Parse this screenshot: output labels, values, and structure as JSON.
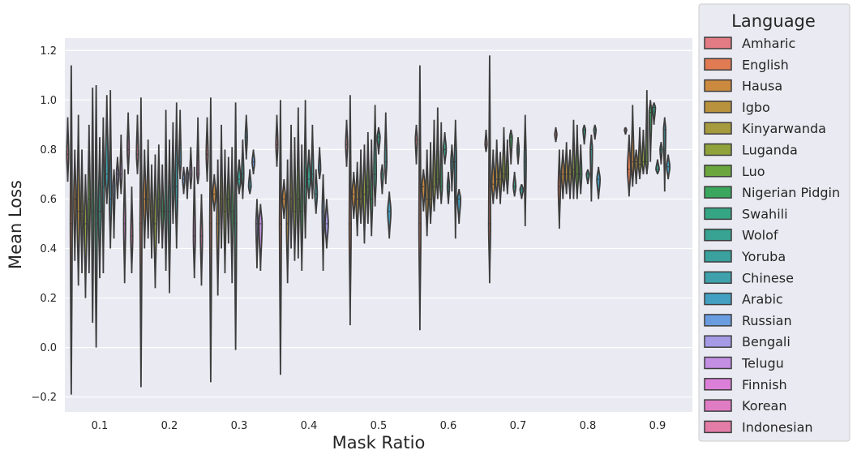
{
  "chart_data": {
    "type": "violin",
    "xlabel": "Mask Ratio",
    "ylabel": "Mean Loss",
    "categories": [
      "0.1",
      "0.2",
      "0.3",
      "0.4",
      "0.5",
      "0.6",
      "0.7",
      "0.8",
      "0.9"
    ],
    "ylim": [
      -0.26,
      1.25
    ],
    "yticks": [
      -0.2,
      0.0,
      0.2,
      0.4,
      0.6,
      0.8,
      1.0,
      1.2
    ],
    "ytick_labels": [
      "−0.2",
      "0.0",
      "0.2",
      "0.4",
      "0.6",
      "0.8",
      "1.0",
      "1.2"
    ],
    "grid": true,
    "legend": {
      "title": "Language",
      "placement": "outside-right",
      "entries": [
        {
          "name": "Amharic",
          "color": "#e37b84"
        },
        {
          "name": "English",
          "color": "#e07b54"
        },
        {
          "name": "Hausa",
          "color": "#cc8a3f"
        },
        {
          "name": "Igbo",
          "color": "#b9923e"
        },
        {
          "name": "Kinyarwanda",
          "color": "#a69a3e"
        },
        {
          "name": "Luganda",
          "color": "#8fa23c"
        },
        {
          "name": "Luo",
          "color": "#6ba63e"
        },
        {
          "name": "Nigerian Pidgin",
          "color": "#3ba75e"
        },
        {
          "name": "Swahili",
          "color": "#36a583"
        },
        {
          "name": "Wolof",
          "color": "#38a393"
        },
        {
          "name": "Yoruba",
          "color": "#3aa19e"
        },
        {
          "name": "Chinese",
          "color": "#3ea1ab"
        },
        {
          "name": "Arabic",
          "color": "#43a0c2"
        },
        {
          "name": "Russian",
          "color": "#6a9de0"
        },
        {
          "name": "Bengali",
          "color": "#a59ae6"
        },
        {
          "name": "Telugu",
          "color": "#c38fe3"
        },
        {
          "name": "Finnish",
          "color": "#db7fd8"
        },
        {
          "name": "Korean",
          "color": "#e07cc4"
        },
        {
          "name": "Indonesian",
          "color": "#e37ca6"
        }
      ]
    },
    "violins": [
      {
        "x": "0.1",
        "series": [
          {
            "median": 0.78,
            "min": 0.67,
            "max": 0.93,
            "width": 0.3
          },
          {
            "median": 0.5,
            "min": -0.19,
            "max": 1.14,
            "width": 0.5
          },
          {
            "median": 0.6,
            "min": 0.35,
            "max": 0.8,
            "width": 0.6
          },
          {
            "median": 0.55,
            "min": 0.25,
            "max": 0.94,
            "width": 0.7
          },
          {
            "median": 0.55,
            "min": 0.3,
            "max": 0.8,
            "width": 0.5
          },
          {
            "median": 0.5,
            "min": 0.2,
            "max": 0.7,
            "width": 0.7
          },
          {
            "median": 0.6,
            "min": 0.3,
            "max": 0.9,
            "width": 0.6
          },
          {
            "median": 0.55,
            "min": 0.1,
            "max": 1.05,
            "width": 0.5
          },
          {
            "median": 0.5,
            "min": -0.0,
            "max": 1.06,
            "width": 0.6
          },
          {
            "median": 0.55,
            "min": 0.28,
            "max": 0.85,
            "width": 0.7
          },
          {
            "median": 0.65,
            "min": 0.3,
            "max": 0.93,
            "width": 0.5
          },
          {
            "median": 0.7,
            "min": 0.58,
            "max": 1.02,
            "width": 0.8
          },
          {
            "median": 0.6,
            "min": 0.4,
            "max": 1.04,
            "width": 0.6
          },
          {
            "median": 0.65,
            "min": 0.44,
            "max": 0.72,
            "width": 0.5
          },
          {
            "median": 0.7,
            "min": 0.6,
            "max": 0.77,
            "width": 0.6
          },
          {
            "median": 0.7,
            "min": 0.62,
            "max": 0.86,
            "width": 0.5
          },
          {
            "median": 0.5,
            "min": 0.26,
            "max": 0.72,
            "width": 0.4
          },
          {
            "median": 0.8,
            "min": 0.7,
            "max": 0.95,
            "width": 0.5
          },
          {
            "median": 0.45,
            "min": 0.3,
            "max": 0.65,
            "width": 0.5
          }
        ]
      },
      {
        "x": "0.2",
        "series": [
          {
            "median": 0.78,
            "min": 0.7,
            "max": 0.94,
            "width": 0.3
          },
          {
            "median": 0.5,
            "min": -0.16,
            "max": 1.01,
            "width": 0.5
          },
          {
            "median": 0.6,
            "min": 0.4,
            "max": 0.8,
            "width": 0.7
          },
          {
            "median": 0.6,
            "min": 0.44,
            "max": 0.84,
            "width": 0.6
          },
          {
            "median": 0.55,
            "min": 0.36,
            "max": 0.74,
            "width": 0.5
          },
          {
            "median": 0.5,
            "min": 0.24,
            "max": 0.78,
            "width": 0.7
          },
          {
            "median": 0.6,
            "min": 0.42,
            "max": 0.82,
            "width": 0.5
          },
          {
            "median": 0.55,
            "min": 0.4,
            "max": 0.74,
            "width": 0.6
          },
          {
            "median": 0.55,
            "min": 0.31,
            "max": 0.96,
            "width": 0.5
          },
          {
            "median": 0.55,
            "min": 0.22,
            "max": 0.84,
            "width": 0.6
          },
          {
            "median": 0.65,
            "min": 0.5,
            "max": 0.91,
            "width": 0.5
          },
          {
            "median": 0.65,
            "min": 0.4,
            "max": 0.99,
            "width": 0.7
          },
          {
            "median": 0.75,
            "min": 0.68,
            "max": 0.96,
            "width": 0.5
          },
          {
            "median": 0.68,
            "min": 0.62,
            "max": 0.73,
            "width": 0.6
          },
          {
            "median": 0.7,
            "min": 0.6,
            "max": 0.73,
            "width": 0.5
          },
          {
            "median": 0.7,
            "min": 0.64,
            "max": 0.81,
            "width": 0.5
          },
          {
            "median": 0.45,
            "min": 0.28,
            "max": 0.73,
            "width": 0.5
          },
          {
            "median": 0.7,
            "min": 0.66,
            "max": 0.93,
            "width": 0.5
          },
          {
            "median": 0.45,
            "min": 0.25,
            "max": 0.62,
            "width": 0.5
          }
        ]
      },
      {
        "x": "0.3",
        "series": [
          {
            "median": 0.78,
            "min": 0.67,
            "max": 0.93,
            "width": 0.3
          },
          {
            "median": 0.5,
            "min": -0.14,
            "max": 1.01,
            "width": 0.5
          },
          {
            "median": 0.62,
            "min": 0.55,
            "max": 0.7,
            "width": 0.9
          },
          {
            "median": 0.5,
            "min": 0.21,
            "max": 0.76,
            "width": 0.6
          },
          {
            "median": 0.6,
            "min": 0.4,
            "max": 0.9,
            "width": 0.5
          },
          {
            "median": 0.55,
            "min": 0.3,
            "max": 0.8,
            "width": 0.6
          },
          {
            "median": 0.6,
            "min": 0.42,
            "max": 0.77,
            "width": 0.6
          },
          {
            "median": 0.55,
            "min": 0.26,
            "max": 0.81,
            "width": 0.6
          },
          {
            "median": 0.5,
            "min": -0.01,
            "max": 0.99,
            "width": 0.5
          },
          {
            "median": 0.68,
            "min": 0.62,
            "max": 0.76,
            "width": 0.9
          },
          {
            "median": 0.7,
            "min": 0.6,
            "max": 0.84,
            "width": 0.6
          },
          {
            "median": 0.85,
            "min": 0.76,
            "max": 0.94,
            "width": 0.5
          },
          {
            "median": 0.65,
            "min": 0.62,
            "max": 0.72,
            "width": 0.7
          },
          {
            "median": 0.75,
            "min": 0.7,
            "max": 0.8,
            "width": 0.7
          },
          {
            "median": 0.5,
            "min": 0.32,
            "max": 0.6,
            "width": 0.5
          },
          {
            "median": 0.5,
            "min": 0.31,
            "max": 0.58,
            "width": 0.9
          }
        ]
      },
      {
        "x": "0.4",
        "series": [
          {
            "median": 0.82,
            "min": 0.73,
            "max": 0.94,
            "width": 0.4
          },
          {
            "median": 0.5,
            "min": -0.11,
            "max": 1.0,
            "width": 0.5
          },
          {
            "median": 0.6,
            "min": 0.52,
            "max": 0.68,
            "width": 0.9
          },
          {
            "median": 0.5,
            "min": 0.26,
            "max": 0.76,
            "width": 0.6
          },
          {
            "median": 0.6,
            "min": 0.4,
            "max": 0.9,
            "width": 0.5
          },
          {
            "median": 0.55,
            "min": 0.35,
            "max": 0.85,
            "width": 0.6
          },
          {
            "median": 0.6,
            "min": 0.36,
            "max": 0.97,
            "width": 0.6
          },
          {
            "median": 0.55,
            "min": 0.31,
            "max": 0.82,
            "width": 0.6
          },
          {
            "median": 0.65,
            "min": 0.44,
            "max": 1.0,
            "width": 0.6
          },
          {
            "median": 0.68,
            "min": 0.6,
            "max": 0.8,
            "width": 0.9
          },
          {
            "median": 0.7,
            "min": 0.6,
            "max": 0.9,
            "width": 0.6
          },
          {
            "median": 0.62,
            "min": 0.54,
            "max": 0.72,
            "width": 0.7
          },
          {
            "median": 0.72,
            "min": 0.68,
            "max": 0.81,
            "width": 0.6
          },
          {
            "median": 0.55,
            "min": 0.31,
            "max": 0.7,
            "width": 0.5
          },
          {
            "median": 0.5,
            "min": 0.4,
            "max": 0.6,
            "width": 0.9
          }
        ]
      },
      {
        "x": "0.5",
        "series": [
          {
            "median": 0.82,
            "min": 0.73,
            "max": 0.92,
            "width": 0.4
          },
          {
            "median": 0.5,
            "min": 0.09,
            "max": 1.02,
            "width": 0.5
          },
          {
            "median": 0.62,
            "min": 0.52,
            "max": 0.71,
            "width": 0.9
          },
          {
            "median": 0.6,
            "min": 0.45,
            "max": 0.75,
            "width": 0.7
          },
          {
            "median": 0.6,
            "min": 0.5,
            "max": 0.8,
            "width": 0.6
          },
          {
            "median": 0.62,
            "min": 0.42,
            "max": 0.82,
            "width": 0.7
          },
          {
            "median": 0.65,
            "min": 0.5,
            "max": 0.87,
            "width": 0.6
          },
          {
            "median": 0.6,
            "min": 0.45,
            "max": 0.84,
            "width": 0.6
          },
          {
            "median": 0.7,
            "min": 0.57,
            "max": 0.98,
            "width": 0.7
          },
          {
            "median": 0.85,
            "min": 0.78,
            "max": 0.89,
            "width": 0.8
          },
          {
            "median": 0.7,
            "min": 0.62,
            "max": 0.74,
            "width": 0.6
          },
          {
            "median": 0.75,
            "min": 0.66,
            "max": 0.95,
            "width": 0.6
          },
          {
            "median": 0.55,
            "min": 0.44,
            "max": 0.63,
            "width": 0.9
          }
        ]
      },
      {
        "x": "0.6",
        "series": [
          {
            "median": 0.84,
            "min": 0.74,
            "max": 0.9,
            "width": 0.4
          },
          {
            "median": 0.5,
            "min": 0.07,
            "max": 1.14,
            "width": 0.5
          },
          {
            "median": 0.65,
            "min": 0.55,
            "max": 0.72,
            "width": 0.9
          },
          {
            "median": 0.6,
            "min": 0.45,
            "max": 0.8,
            "width": 0.7
          },
          {
            "median": 0.6,
            "min": 0.5,
            "max": 0.83,
            "width": 0.6
          },
          {
            "median": 0.65,
            "min": 0.55,
            "max": 0.92,
            "width": 0.7
          },
          {
            "median": 0.68,
            "min": 0.6,
            "max": 0.97,
            "width": 0.6
          },
          {
            "median": 0.65,
            "min": 0.58,
            "max": 0.91,
            "width": 0.6
          },
          {
            "median": 0.8,
            "min": 0.74,
            "max": 0.87,
            "width": 0.8
          },
          {
            "median": 0.65,
            "min": 0.58,
            "max": 0.71,
            "width": 0.6
          },
          {
            "median": 0.75,
            "min": 0.63,
            "max": 0.82,
            "width": 0.6
          },
          {
            "median": 0.75,
            "min": 0.44,
            "max": 0.92,
            "width": 0.6
          },
          {
            "median": 0.6,
            "min": 0.5,
            "max": 0.64,
            "width": 0.9
          }
        ]
      },
      {
        "x": "0.7",
        "series": [
          {
            "median": 0.82,
            "min": 0.79,
            "max": 0.88,
            "width": 0.5
          },
          {
            "median": 0.5,
            "min": 0.26,
            "max": 1.18,
            "width": 0.5
          },
          {
            "median": 0.66,
            "min": 0.58,
            "max": 0.8,
            "width": 0.8
          },
          {
            "median": 0.68,
            "min": 0.6,
            "max": 0.84,
            "width": 0.7
          },
          {
            "median": 0.68,
            "min": 0.58,
            "max": 0.79,
            "width": 0.7
          },
          {
            "median": 0.7,
            "min": 0.63,
            "max": 0.89,
            "width": 0.7
          },
          {
            "median": 0.7,
            "min": 0.62,
            "max": 0.84,
            "width": 0.6
          },
          {
            "median": 0.85,
            "min": 0.74,
            "max": 0.88,
            "width": 0.7
          },
          {
            "median": 0.65,
            "min": 0.61,
            "max": 0.71,
            "width": 0.7
          },
          {
            "median": 0.8,
            "min": 0.74,
            "max": 0.85,
            "width": 0.5
          },
          {
            "median": 0.64,
            "min": 0.6,
            "max": 0.66,
            "width": 0.9
          },
          {
            "median": 0.75,
            "min": 0.49,
            "max": 0.94,
            "width": 0.5
          }
        ]
      },
      {
        "x": "0.8",
        "series": [
          {
            "median": 0.86,
            "min": 0.83,
            "max": 0.89,
            "width": 0.6
          },
          {
            "median": 0.65,
            "min": 0.48,
            "max": 0.8,
            "width": 0.6
          },
          {
            "median": 0.7,
            "min": 0.6,
            "max": 0.8,
            "width": 0.8
          },
          {
            "median": 0.7,
            "min": 0.62,
            "max": 0.83,
            "width": 0.7
          },
          {
            "median": 0.7,
            "min": 0.6,
            "max": 0.8,
            "width": 0.7
          },
          {
            "median": 0.72,
            "min": 0.6,
            "max": 0.92,
            "width": 0.6
          },
          {
            "median": 0.7,
            "min": 0.6,
            "max": 0.9,
            "width": 0.7
          },
          {
            "median": 0.7,
            "min": 0.62,
            "max": 0.82,
            "width": 0.6
          },
          {
            "median": 0.88,
            "min": 0.82,
            "max": 0.9,
            "width": 0.7
          },
          {
            "median": 0.7,
            "min": 0.66,
            "max": 0.72,
            "width": 0.8
          },
          {
            "median": 0.8,
            "min": 0.59,
            "max": 0.86,
            "width": 0.6
          },
          {
            "median": 0.88,
            "min": 0.84,
            "max": 0.9,
            "width": 0.6
          },
          {
            "median": 0.68,
            "min": 0.6,
            "max": 0.73,
            "width": 0.9
          }
        ]
      },
      {
        "x": "0.9",
        "series": [
          {
            "median": 0.88,
            "min": 0.86,
            "max": 0.89,
            "width": 0.6
          },
          {
            "median": 0.72,
            "min": 0.61,
            "max": 0.86,
            "width": 0.9
          },
          {
            "median": 0.75,
            "min": 0.65,
            "max": 0.98,
            "width": 0.7
          },
          {
            "median": 0.75,
            "min": 0.66,
            "max": 0.8,
            "width": 0.7
          },
          {
            "median": 0.74,
            "min": 0.68,
            "max": 0.89,
            "width": 0.7
          },
          {
            "median": 0.75,
            "min": 0.7,
            "max": 0.88,
            "width": 0.7
          },
          {
            "median": 0.75,
            "min": 0.7,
            "max": 1.04,
            "width": 0.6
          },
          {
            "median": 0.95,
            "min": 0.75,
            "max": 1.0,
            "width": 0.7
          },
          {
            "median": 0.97,
            "min": 0.9,
            "max": 0.99,
            "width": 0.8
          },
          {
            "median": 0.72,
            "min": 0.7,
            "max": 0.76,
            "width": 0.9
          },
          {
            "median": 0.8,
            "min": 0.74,
            "max": 0.83,
            "width": 0.6
          },
          {
            "median": 0.88,
            "min": 0.63,
            "max": 0.93,
            "width": 0.6
          },
          {
            "median": 0.73,
            "min": 0.68,
            "max": 0.78,
            "width": 0.9
          }
        ]
      }
    ]
  }
}
